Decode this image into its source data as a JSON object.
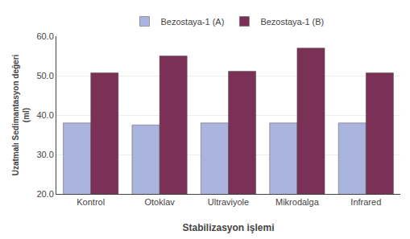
{
  "chart_data": {
    "type": "bar",
    "categories": [
      "Kontrol",
      "Otoklav",
      "Ultraviyole",
      "Mikrodalga",
      "Infrared"
    ],
    "series": [
      {
        "name": "Bezostaya-1 (A)",
        "color": "#aab4df",
        "values": [
          38.0,
          37.5,
          38.0,
          38.0,
          38.0
        ]
      },
      {
        "name": "Bezostaya-1 (B)",
        "color": "#7b3055",
        "values": [
          50.7,
          55.0,
          51.1,
          57.0,
          50.7
        ]
      }
    ],
    "xlabel": "Stabilizasyon işlemi",
    "ylabel": "Uzatmalı Sedimantasyon değeri\n(ml)",
    "ylim": [
      20.0,
      60.0
    ],
    "yticks": [
      {
        "value": 20.0,
        "label": "20.0"
      },
      {
        "value": 30.0,
        "label": "30.0"
      },
      {
        "value": 40.0,
        "label": "40.0"
      },
      {
        "value": 50.0,
        "label": "50.0"
      },
      {
        "value": 60.0,
        "label": "60.0"
      }
    ],
    "grid": true,
    "legend": "top"
  }
}
